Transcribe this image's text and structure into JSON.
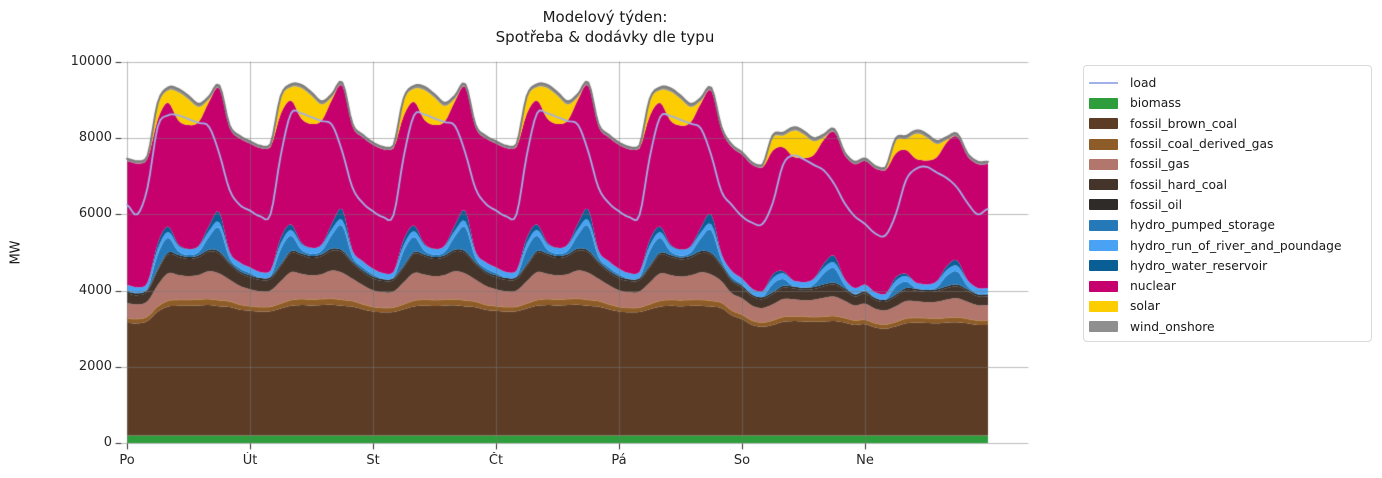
{
  "title": {
    "line1": "Modelový týden:",
    "line2": "Spotřeba & dodávky dle typu"
  },
  "axes": {
    "ylabel": "MW",
    "ylim": [
      0,
      10000
    ],
    "yticks": [
      0,
      2000,
      4000,
      6000,
      8000,
      10000
    ],
    "ytick_labels": [
      "0",
      "2000",
      "4000",
      "6000",
      "8000",
      "10000"
    ],
    "xtick_labels": [
      "Po",
      "Út",
      "St",
      "Čt",
      "Pá",
      "So",
      "Ne"
    ],
    "grid": true
  },
  "legend": {
    "position": "outside-right"
  },
  "chart_data": {
    "type": "area",
    "stacked": true,
    "x_unit": "hour_of_week",
    "hours_total": 168,
    "slot_hours": [
      0,
      2,
      4,
      6,
      8,
      10,
      12,
      14,
      16,
      18,
      20,
      22
    ],
    "day_labels": [
      "Po",
      "Út",
      "St",
      "Čt",
      "Pá",
      "So",
      "Ne"
    ],
    "load_line": {
      "name": "load",
      "color": "#a2b1e8",
      "end": 6150,
      "days": [
        [
          6250,
          6000,
          6700,
          8300,
          8600,
          8600,
          8500,
          8400,
          8300,
          7600,
          6650,
          6250
        ],
        [
          6100,
          5950,
          6000,
          7550,
          8650,
          8650,
          8550,
          8450,
          8350,
          7650,
          6700,
          6300
        ],
        [
          6080,
          5930,
          5980,
          7520,
          8600,
          8620,
          8520,
          8420,
          8320,
          7620,
          6680,
          6280
        ],
        [
          6100,
          5950,
          6000,
          7550,
          8650,
          8650,
          8550,
          8450,
          8350,
          7650,
          6700,
          6300
        ],
        [
          6080,
          5930,
          5980,
          7500,
          8550,
          8580,
          8480,
          8380,
          8250,
          7550,
          6600,
          6250
        ],
        [
          5950,
          5780,
          5750,
          6300,
          7300,
          7550,
          7450,
          7300,
          7150,
          6800,
          6300,
          5950
        ],
        [
          5750,
          5500,
          5450,
          6000,
          6900,
          7200,
          7250,
          7100,
          6950,
          6700,
          6300,
          6000
        ]
      ]
    },
    "series": [
      {
        "name": "biomass",
        "color": "#2e9e3c",
        "flat": 200
      },
      {
        "name": "fossil_brown_coal",
        "color": "#5d3c26",
        "days": [
          [
            2950,
            2940,
            3000,
            3250,
            3380,
            3400,
            3400,
            3410,
            3420,
            3390,
            3370,
            3300
          ],
          [
            3270,
            3250,
            3260,
            3330,
            3400,
            3420,
            3410,
            3420,
            3430,
            3400,
            3380,
            3310
          ],
          [
            3250,
            3230,
            3240,
            3310,
            3385,
            3405,
            3395,
            3405,
            3415,
            3385,
            3365,
            3295
          ],
          [
            3270,
            3250,
            3260,
            3330,
            3400,
            3420,
            3410,
            3420,
            3430,
            3400,
            3380,
            3310
          ],
          [
            3250,
            3230,
            3240,
            3310,
            3380,
            3400,
            3390,
            3400,
            3400,
            3380,
            3340,
            3150
          ],
          [
            3050,
            2900,
            2850,
            2900,
            2980,
            3000,
            2990,
            2980,
            2990,
            3000,
            2960,
            2900
          ],
          [
            2920,
            2830,
            2800,
            2860,
            2940,
            2960,
            2950,
            2940,
            2960,
            2970,
            2940,
            2900
          ]
        ]
      },
      {
        "name": "fossil_coal_derived_gas",
        "color": "#8d5c28",
        "edge": "#c59a55",
        "days": [
          [
            120,
            118,
            120,
            135,
            155,
            160,
            160,
            160,
            160,
            160,
            150,
            135
          ],
          [
            125,
            120,
            120,
            135,
            155,
            160,
            160,
            160,
            160,
            160,
            150,
            135
          ],
          [
            125,
            120,
            120,
            135,
            155,
            160,
            160,
            160,
            160,
            160,
            150,
            135
          ],
          [
            125,
            120,
            120,
            135,
            155,
            160,
            160,
            160,
            160,
            160,
            150,
            135
          ],
          [
            125,
            120,
            120,
            135,
            155,
            160,
            160,
            160,
            160,
            155,
            145,
            130
          ],
          [
            120,
            115,
            115,
            120,
            130,
            130,
            130,
            130,
            130,
            135,
            125,
            120
          ],
          [
            118,
            113,
            113,
            118,
            128,
            128,
            128,
            128,
            128,
            132,
            122,
            118
          ]
        ]
      },
      {
        "name": "fossil_gas",
        "color": "#b2766d",
        "days": [
          [
            400,
            380,
            400,
            560,
            720,
            650,
            620,
            640,
            730,
            700,
            570,
            490
          ],
          [
            440,
            410,
            420,
            580,
            730,
            660,
            630,
            650,
            740,
            710,
            580,
            500
          ],
          [
            435,
            405,
            415,
            575,
            725,
            655,
            625,
            645,
            735,
            705,
            575,
            495
          ],
          [
            440,
            410,
            420,
            580,
            730,
            660,
            630,
            650,
            740,
            710,
            580,
            500
          ],
          [
            435,
            405,
            415,
            570,
            715,
            650,
            620,
            640,
            720,
            690,
            560,
            450
          ],
          [
            430,
            390,
            380,
            420,
            470,
            440,
            430,
            450,
            490,
            510,
            450,
            390
          ],
          [
            420,
            380,
            370,
            410,
            460,
            430,
            420,
            440,
            480,
            500,
            445,
            400
          ]
        ]
      },
      {
        "name": "fossil_hard_coal",
        "color": "#44342a",
        "days": [
          [
            250,
            240,
            260,
            380,
            495,
            475,
            450,
            465,
            515,
            525,
            400,
            335
          ],
          [
            315,
            300,
            305,
            395,
            505,
            485,
            455,
            475,
            525,
            535,
            405,
            340
          ],
          [
            310,
            295,
            300,
            390,
            500,
            480,
            450,
            470,
            520,
            530,
            400,
            335
          ],
          [
            315,
            300,
            305,
            395,
            505,
            485,
            455,
            475,
            525,
            535,
            405,
            340
          ],
          [
            310,
            295,
            300,
            390,
            495,
            475,
            448,
            465,
            510,
            515,
            390,
            310
          ],
          [
            280,
            240,
            230,
            265,
            295,
            285,
            272,
            282,
            305,
            315,
            282,
            235
          ],
          [
            270,
            230,
            222,
            258,
            288,
            278,
            265,
            275,
            298,
            308,
            278,
            232
          ]
        ]
      },
      {
        "name": "fossil_oil",
        "color": "#2e2b28",
        "flat": 50
      },
      {
        "name": "hydro_pumped_storage",
        "color": "#2679b8",
        "days": [
          [
            30,
            10,
            30,
            380,
            390,
            95,
            55,
            85,
            340,
            620,
            115,
            75
          ],
          [
            60,
            10,
            15,
            400,
            400,
            100,
            60,
            90,
            360,
            650,
            120,
            80
          ],
          [
            55,
            10,
            12,
            390,
            395,
            98,
            58,
            88,
            350,
            640,
            118,
            78
          ],
          [
            60,
            10,
            15,
            400,
            400,
            100,
            60,
            90,
            360,
            650,
            120,
            80
          ],
          [
            55,
            10,
            12,
            385,
            390,
            95,
            55,
            85,
            340,
            600,
            110,
            70
          ],
          [
            40,
            5,
            5,
            220,
            180,
            10,
            0,
            60,
            290,
            380,
            85,
            20
          ],
          [
            30,
            5,
            5,
            210,
            170,
            10,
            0,
            55,
            280,
            340,
            82,
            20
          ]
        ]
      },
      {
        "name": "hydro_run_of_river_and_poundage",
        "color": "#49a2f3",
        "flat": 150
      },
      {
        "name": "hydro_water_reservoir",
        "color": "#095e95",
        "days": [
          [
            0,
            0,
            0,
            140,
            145,
            38,
            10,
            19,
            140,
            265,
            18,
            9
          ],
          [
            0,
            0,
            0,
            150,
            150,
            40,
            10,
            20,
            150,
            280,
            20,
            10
          ],
          [
            0,
            0,
            0,
            148,
            148,
            38,
            10,
            19,
            145,
            275,
            20,
            10
          ],
          [
            0,
            0,
            0,
            150,
            150,
            40,
            10,
            20,
            150,
            280,
            20,
            10
          ],
          [
            0,
            0,
            0,
            145,
            145,
            38,
            10,
            19,
            140,
            260,
            18,
            8
          ],
          [
            0,
            0,
            0,
            100,
            60,
            0,
            0,
            10,
            110,
            175,
            10,
            0
          ],
          [
            0,
            0,
            0,
            95,
            55,
            0,
            0,
            10,
            105,
            140,
            10,
            0
          ]
        ]
      },
      {
        "name": "nuclear",
        "color": "#c6006d",
        "flat": 3250
      },
      {
        "name": "solar",
        "color": "#fcce02",
        "days": [
          [
            0,
            0,
            10,
            370,
            320,
            740,
            680,
            390,
            65,
            0,
            0,
            0
          ],
          [
            0,
            0,
            10,
            400,
            350,
            800,
            740,
            420,
            70,
            0,
            0,
            0
          ],
          [
            0,
            0,
            10,
            390,
            340,
            780,
            720,
            410,
            68,
            0,
            0,
            0
          ],
          [
            0,
            0,
            10,
            400,
            350,
            800,
            740,
            420,
            70,
            0,
            0,
            0
          ],
          [
            0,
            0,
            10,
            380,
            330,
            760,
            700,
            400,
            66,
            0,
            0,
            0
          ],
          [
            0,
            0,
            8,
            340,
            300,
            680,
            630,
            360,
            60,
            0,
            0,
            0
          ],
          [
            0,
            0,
            8,
            330,
            290,
            660,
            610,
            350,
            58,
            0,
            0,
            0
          ]
        ]
      },
      {
        "name": "wind_onshore",
        "color": "#8f8f8f",
        "edge": "#7c7c7c",
        "profile": [
          60,
          60,
          60,
          65,
          75,
          85,
          85,
          80,
          75,
          75,
          70,
          65
        ]
      }
    ]
  }
}
